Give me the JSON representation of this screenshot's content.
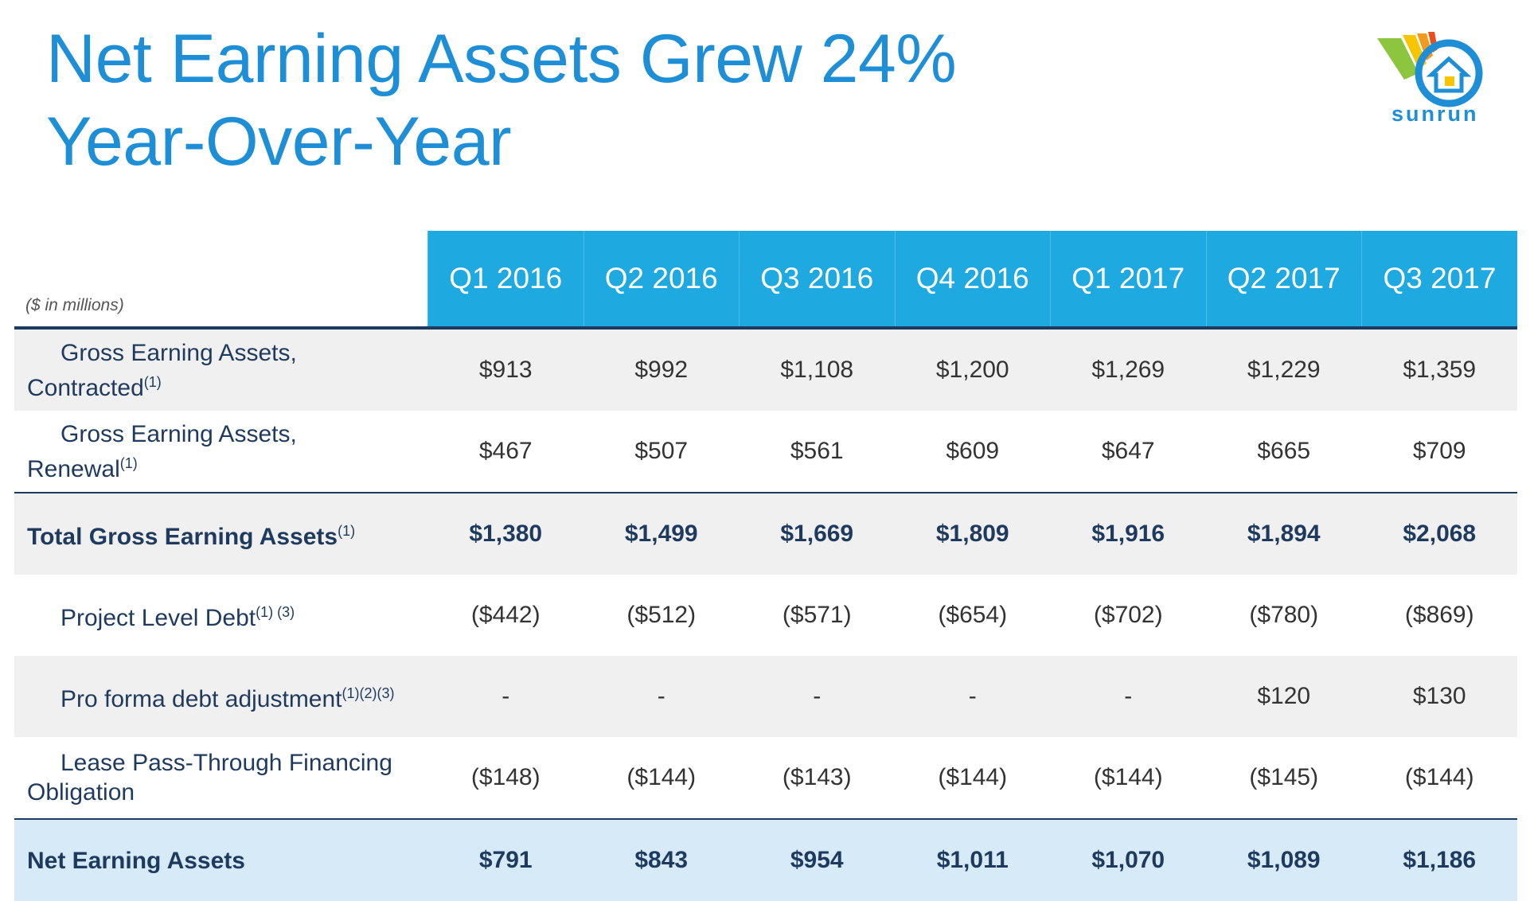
{
  "title": [
    "Net Earning Assets Grew 24%",
    "Year-Over-Year"
  ],
  "logo": "sunrun",
  "table": {
    "unit_note": "($ in millions)",
    "columns": [
      "Q1 2016",
      "Q2 2016",
      "Q3 2016",
      "Q4 2016",
      "Q1 2017",
      "Q2 2017",
      "Q3 2017"
    ],
    "rows": [
      {
        "label": [
          "Gross Earning Assets,",
          "Contracted"
        ],
        "note": "(1)",
        "values": [
          "$913",
          "$992",
          "$1,108",
          "$1,200",
          "$1,269",
          "$1,229",
          "$1,359"
        ]
      },
      {
        "label": [
          "Gross Earning Assets,",
          "Renewal"
        ],
        "note": "(1)",
        "values": [
          "$467",
          "$507",
          "$561",
          "$609",
          "$647",
          "$665",
          "$709"
        ]
      },
      {
        "label": [
          "Total Gross Earning Assets"
        ],
        "note": "(1)",
        "values": [
          "$1,380",
          "$1,499",
          "$1,669",
          "$1,809",
          "$1,916",
          "$1,894",
          "$2,068"
        ]
      },
      {
        "label": [
          "Project Level Debt"
        ],
        "note": "(1) (3)",
        "values": [
          "($442)",
          "($512)",
          "($571)",
          "($654)",
          "($702)",
          "($780)",
          "($869)"
        ]
      },
      {
        "label": [
          "Pro forma debt adjustment"
        ],
        "note": "(1)(2)(3)",
        "values": [
          "-",
          "-",
          "-",
          "-",
          "-",
          "$120",
          "$130"
        ]
      },
      {
        "label": [
          "Lease Pass-Through Financing",
          "Obligation"
        ],
        "values": [
          "($148)",
          "($144)",
          "($143)",
          "($144)",
          "($144)",
          "($145)",
          "($144)"
        ]
      },
      {
        "label": [
          "Net Earning Assets"
        ],
        "values": [
          "$791",
          "$843",
          "$954",
          "$1,011",
          "$1,070",
          "$1,089",
          "$1,186"
        ]
      }
    ]
  }
}
